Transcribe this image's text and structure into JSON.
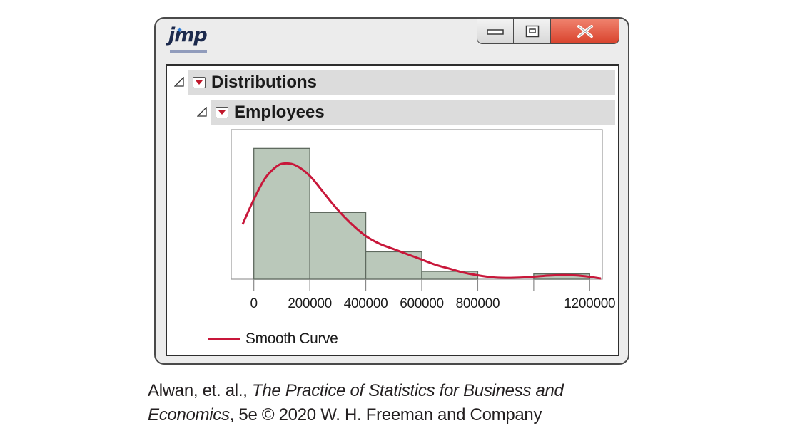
{
  "app": {
    "logo_text": "jmp",
    "logo_icon": "jmp-logo-icon"
  },
  "window_controls": {
    "minimize_icon": "minimize-icon",
    "maximize_icon": "restore-icon",
    "close_icon": "close-icon"
  },
  "report": {
    "sections": [
      {
        "label": "Distributions"
      },
      {
        "label": "Employees"
      }
    ]
  },
  "chart_data": {
    "type": "bar",
    "bins": [
      {
        "from": 0,
        "to": 200000,
        "frequency": 0.1
      },
      {
        "from": 200000,
        "to": 400000,
        "frequency": 0.051
      },
      {
        "from": 400000,
        "to": 600000,
        "frequency": 0.021
      },
      {
        "from": 600000,
        "to": 800000,
        "frequency": 0.006
      },
      {
        "from": 800000,
        "to": 1000000,
        "frequency": 0
      },
      {
        "from": 1000000,
        "to": 1200000,
        "frequency": 0.004
      }
    ],
    "tick_labels": [
      "0",
      "200000",
      "400000",
      "600000",
      "800000",
      "1200000"
    ],
    "tick_values": [
      0,
      200000,
      400000,
      600000,
      800000,
      1200000
    ],
    "xlim": [
      -40000,
      1240000
    ],
    "ylim": [
      0,
      0.11
    ],
    "smooth_curve": [
      [
        -40000,
        0.042
      ],
      [
        0,
        0.061
      ],
      [
        40000,
        0.077
      ],
      [
        80000,
        0.086
      ],
      [
        110000,
        0.0885
      ],
      [
        150000,
        0.087
      ],
      [
        200000,
        0.079
      ],
      [
        250000,
        0.066
      ],
      [
        300000,
        0.053
      ],
      [
        350000,
        0.042
      ],
      [
        400000,
        0.033
      ],
      [
        450000,
        0.027
      ],
      [
        500000,
        0.023
      ],
      [
        550000,
        0.019
      ],
      [
        600000,
        0.015
      ],
      [
        650000,
        0.011
      ],
      [
        700000,
        0.008
      ],
      [
        750000,
        0.005
      ],
      [
        800000,
        0.003
      ],
      [
        850000,
        0.0015
      ],
      [
        900000,
        0.001
      ],
      [
        950000,
        0.0012
      ],
      [
        1000000,
        0.0019
      ],
      [
        1050000,
        0.0027
      ],
      [
        1100000,
        0.0031
      ],
      [
        1150000,
        0.0029
      ],
      [
        1200000,
        0.0018
      ],
      [
        1240000,
        0.0005
      ]
    ],
    "bar_color": "#bac8ba",
    "bar_stroke": "#5f6a5f",
    "curve_color": "#c8173a",
    "grid": false,
    "legend": {
      "entries": [
        "Smooth Curve"
      ],
      "placement": "bottom-left"
    }
  },
  "legend": {
    "label": "Smooth Curve"
  },
  "caption": {
    "line1_prefix": "Alwan, et. al., ",
    "line1_italic": "The Practice of Statistics for Business and",
    "line2_italic": "Economics",
    "line2_suffix": ", 5e © 2020 W. H. Freeman and Company"
  }
}
